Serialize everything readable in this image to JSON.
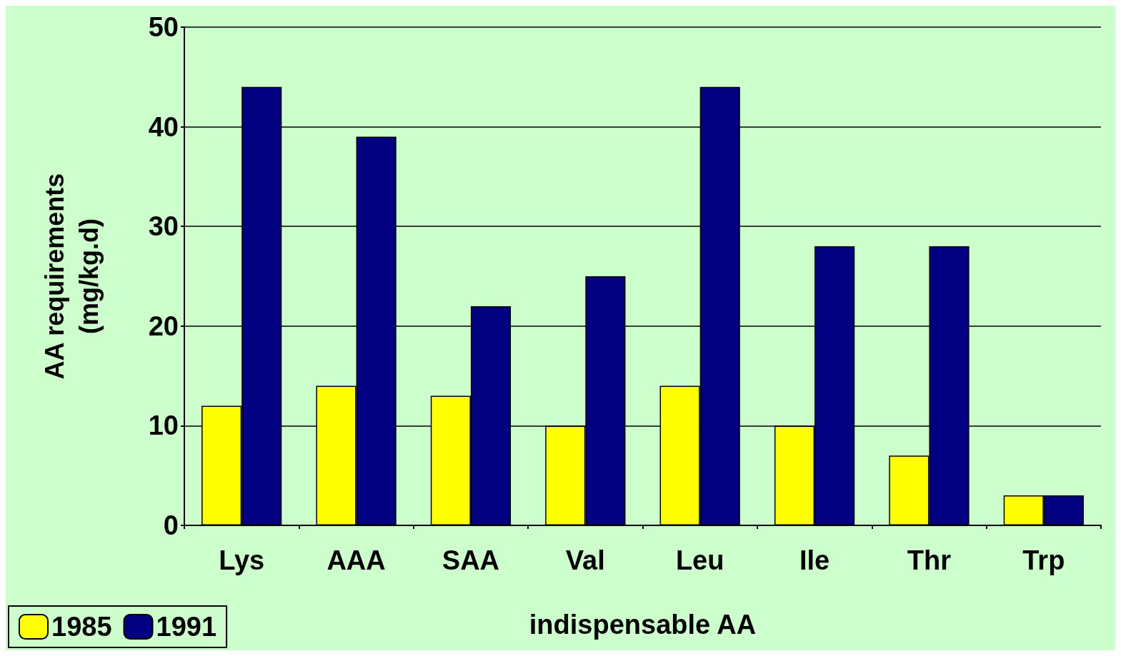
{
  "chart_data": {
    "type": "bar",
    "xlabel": "indispensable AA",
    "ylabel": "AA requirements\n(mg/kg.d)",
    "categories": [
      "Lys",
      "AAA",
      "SAA",
      "Val",
      "Leu",
      "Ile",
      "Thr",
      "Trp"
    ],
    "series": [
      {
        "name": "1985",
        "color": "#ffff00",
        "values": [
          12,
          14,
          13,
          10,
          14,
          10,
          7,
          3
        ]
      },
      {
        "name": "1991",
        "color": "#000080",
        "values": [
          44,
          39,
          22,
          25,
          44,
          28,
          28,
          3
        ]
      }
    ],
    "ylim": [
      0,
      50
    ],
    "yticks": [
      0,
      10,
      20,
      30,
      40,
      50
    ],
    "grid": "y",
    "legend": "bottom left"
  }
}
